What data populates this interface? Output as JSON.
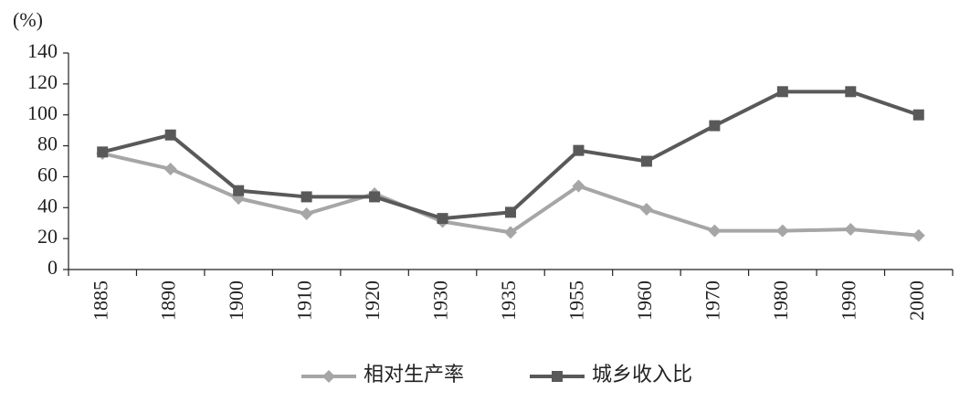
{
  "chart_data": {
    "type": "line",
    "ylabel": "(%)",
    "categories": [
      "1885",
      "1890",
      "1900",
      "1910",
      "1920",
      "1930",
      "1935",
      "1955",
      "1960",
      "1970",
      "1980",
      "1990",
      "2000"
    ],
    "series": [
      {
        "name": "相对生产率",
        "color": "#a6a6a6",
        "marker": "diamond",
        "values": [
          75,
          65,
          46,
          36,
          49,
          31,
          24,
          54,
          39,
          25,
          25,
          26,
          22
        ]
      },
      {
        "name": "城乡收入比",
        "color": "#595959",
        "marker": "square",
        "values": [
          76,
          87,
          51,
          47,
          47,
          33,
          37,
          77,
          70,
          93,
          115,
          115,
          100
        ]
      }
    ],
    "ylim": [
      0,
      140
    ],
    "yticks": [
      0,
      20,
      40,
      60,
      80,
      100,
      120,
      140
    ],
    "grid": false
  }
}
